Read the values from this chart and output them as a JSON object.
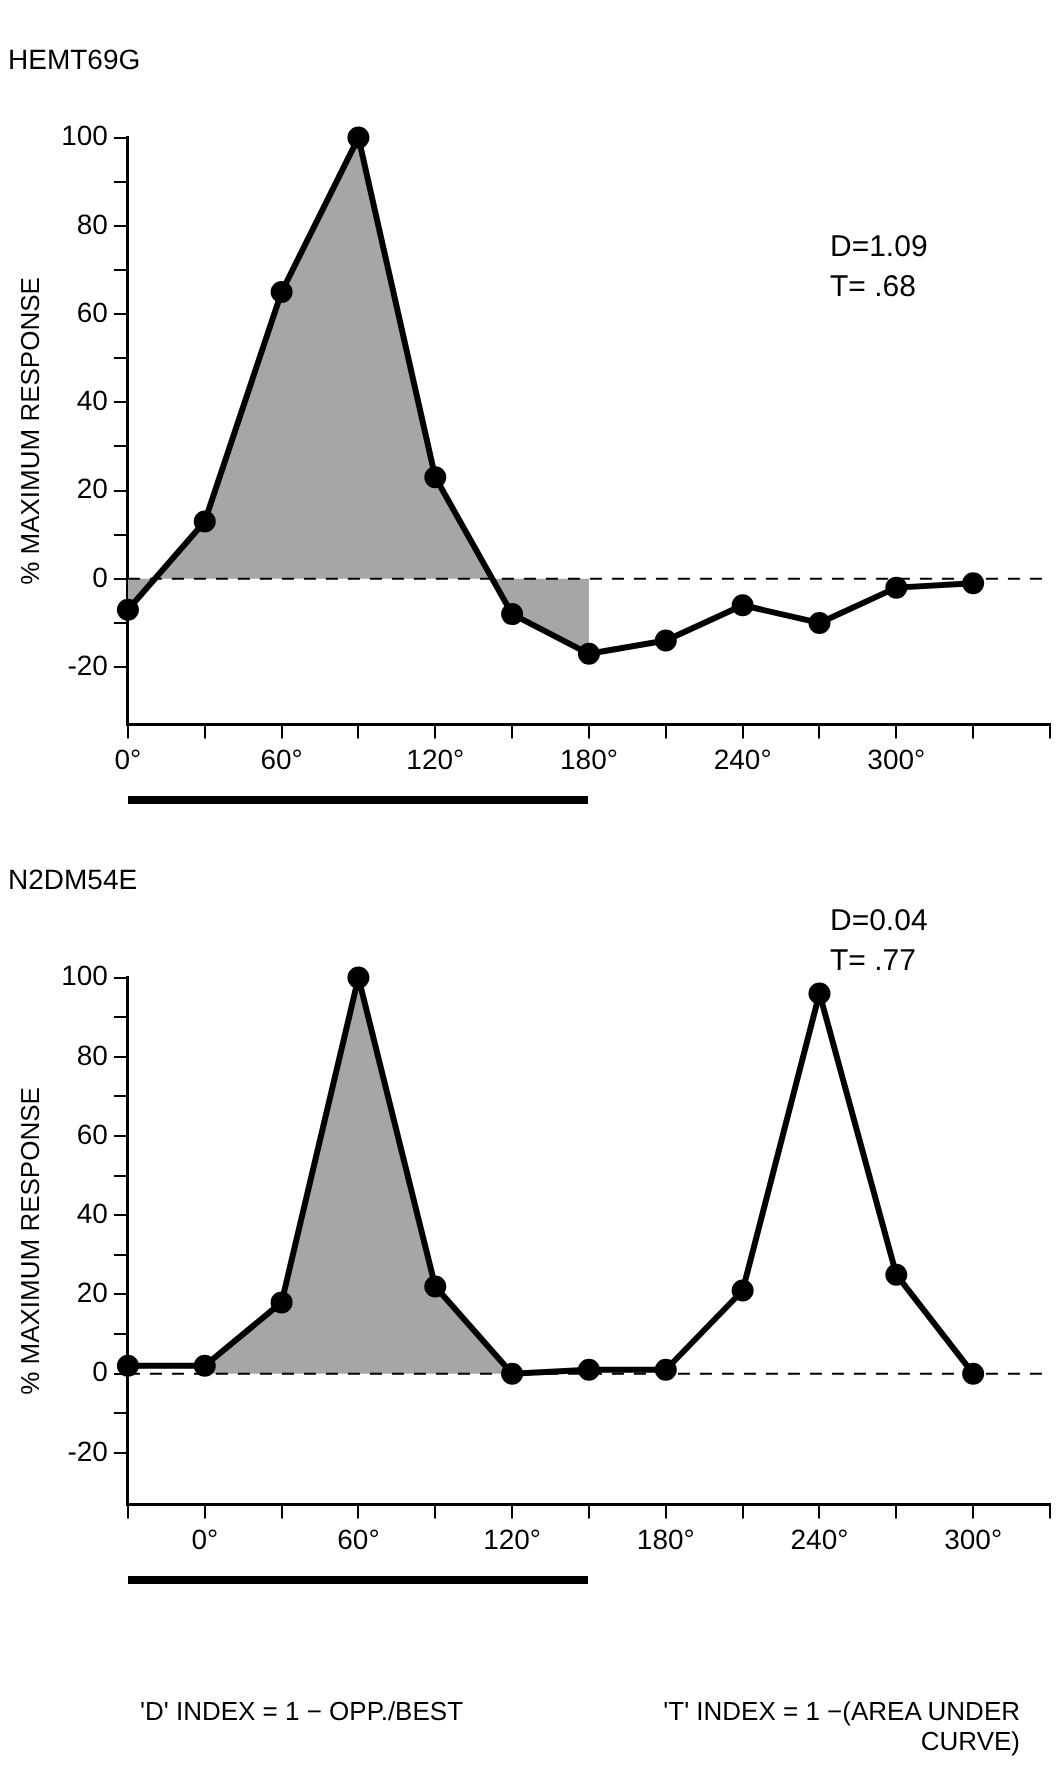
{
  "chart_data": [
    {
      "type": "line",
      "title": "HEMT69G",
      "ylabel": "% MAXIMUM RESPONSE",
      "xlim": [
        0,
        360
      ],
      "ylim": [
        -33,
        100
      ],
      "xticks": [
        {
          "value": 0,
          "label": "0°"
        },
        {
          "value": 30,
          "label": null
        },
        {
          "value": 60,
          "label": "60°"
        },
        {
          "value": 90,
          "label": null
        },
        {
          "value": 120,
          "label": "120°"
        },
        {
          "value": 150,
          "label": null
        },
        {
          "value": 180,
          "label": "180°"
        },
        {
          "value": 210,
          "label": null
        },
        {
          "value": 240,
          "label": "240°"
        },
        {
          "value": 270,
          "label": null
        },
        {
          "value": 300,
          "label": "300°"
        },
        {
          "value": 330,
          "label": null
        },
        {
          "value": 360,
          "label": null
        }
      ],
      "yticks": [
        -20,
        {
          "value": -10,
          "label": null
        },
        0,
        {
          "value": 10,
          "label": null
        },
        20,
        {
          "value": 30,
          "label": null
        },
        40,
        {
          "value": 50,
          "label": null
        },
        60,
        {
          "value": 70,
          "label": null
        },
        80,
        {
          "value": 90,
          "label": null
        },
        100
      ],
      "series": [
        {
          "type": "line",
          "color": "#000000",
          "marker": "circle",
          "x": [
            0,
            30,
            60,
            90,
            120,
            150,
            180,
            210,
            240,
            270,
            300,
            330
          ],
          "values": [
            -7,
            13,
            65,
            100,
            23,
            -8,
            -17,
            -14,
            -6,
            -10,
            -2,
            -1
          ]
        },
        {
          "type": "area",
          "color": "#a6a6a6",
          "x": [
            0,
            30,
            60,
            90,
            120,
            150,
            180
          ],
          "values": [
            -7,
            13,
            65,
            100,
            23,
            -8,
            -17
          ]
        }
      ],
      "ref_lines": [
        {
          "axis": "y",
          "value": 0,
          "color": "#000000",
          "line_style": "dashed"
        }
      ],
      "annotations": [
        "D=1.09",
        "T= .68"
      ],
      "grid": false,
      "legend": false
    },
    {
      "type": "line",
      "title": "N2DM54E",
      "ylabel": "% MAXIMUM RESPONSE",
      "xlim": [
        -30,
        330
      ],
      "ylim": [
        -33,
        100
      ],
      "xticks": [
        {
          "value": -30,
          "label": null
        },
        {
          "value": 0,
          "label": "0°"
        },
        {
          "value": 30,
          "label": null
        },
        {
          "value": 60,
          "label": "60°"
        },
        {
          "value": 90,
          "label": null
        },
        {
          "value": 120,
          "label": "120°"
        },
        {
          "value": 150,
          "label": null
        },
        {
          "value": 180,
          "label": "180°"
        },
        {
          "value": 210,
          "label": null
        },
        {
          "value": 240,
          "label": "240°"
        },
        {
          "value": 270,
          "label": null
        },
        {
          "value": 300,
          "label": "300°"
        },
        {
          "value": 330,
          "label": null
        }
      ],
      "yticks": [
        -20,
        {
          "value": -10,
          "label": null
        },
        0,
        {
          "value": 10,
          "label": null
        },
        20,
        {
          "value": 30,
          "label": null
        },
        40,
        {
          "value": 50,
          "label": null
        },
        60,
        {
          "value": 70,
          "label": null
        },
        80,
        {
          "value": 90,
          "label": null
        },
        100
      ],
      "series": [
        {
          "type": "line",
          "color": "#000000",
          "marker": "circle",
          "x": [
            -30,
            0,
            30,
            60,
            90,
            120,
            150,
            180,
            210,
            240,
            270,
            300
          ],
          "values": [
            2,
            2,
            18,
            100,
            22,
            0,
            1,
            1,
            21,
            96,
            25,
            0
          ]
        },
        {
          "type": "area",
          "color": "#a6a6a6",
          "x": [
            0,
            30,
            60,
            90,
            120
          ],
          "values": [
            2,
            18,
            100,
            22,
            0
          ]
        }
      ],
      "ref_lines": [
        {
          "axis": "y",
          "value": 0,
          "color": "#000000",
          "line_style": "dashed"
        }
      ],
      "annotations": [
        "D=0.04",
        "T= .77",
        "'D' INDEX = 1 − OPP./BEST",
        "'T' INDEX = 1 −(AREA UNDER CURVE)"
      ],
      "grid": false,
      "legend": false
    }
  ]
}
